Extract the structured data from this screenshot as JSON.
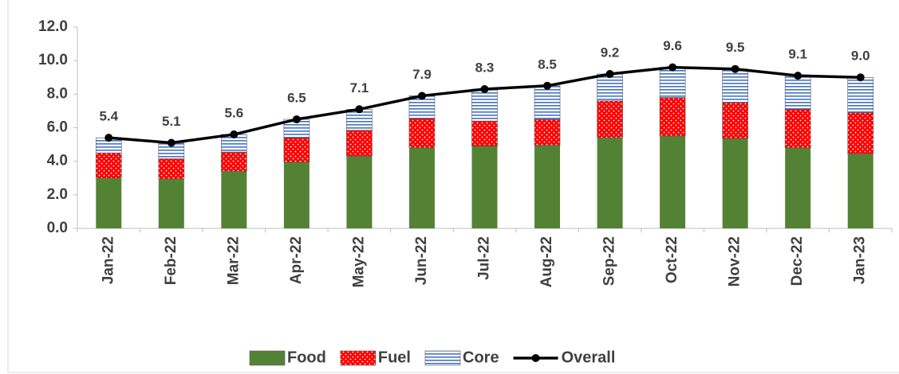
{
  "chart_data": {
    "type": "stacked_bar_line",
    "categories": [
      "Jan-22",
      "Feb-22",
      "Mar-22",
      "Apr-22",
      "May-22",
      "Jun-22",
      "Jul-22",
      "Aug-22",
      "Sep-22",
      "Oct-22",
      "Nov-22",
      "Dec-22",
      "Jan-23"
    ],
    "series": [
      {
        "name": "Food",
        "color": "#548235",
        "values": [
          3.0,
          2.95,
          3.4,
          3.95,
          4.3,
          4.8,
          4.9,
          4.95,
          5.4,
          5.5,
          5.35,
          4.8,
          4.45
        ]
      },
      {
        "name": "Fuel",
        "color": "#ff0000",
        "values": [
          1.5,
          1.2,
          1.15,
          1.45,
          1.55,
          1.75,
          1.5,
          1.55,
          2.2,
          2.3,
          2.15,
          2.3,
          2.45
        ]
      },
      {
        "name": "Core",
        "color": "#4472c4",
        "values": [
          0.9,
          0.95,
          1.05,
          1.1,
          1.25,
          1.35,
          1.9,
          2.0,
          1.6,
          1.8,
          2.0,
          2.0,
          2.1
        ]
      },
      {
        "name": "Overall",
        "color": "#000000",
        "type": "line",
        "values": [
          5.4,
          5.1,
          5.6,
          6.5,
          7.1,
          7.9,
          8.3,
          8.5,
          9.2,
          9.6,
          9.5,
          9.1,
          9.0
        ],
        "value_labels": [
          "5.4",
          "5.1",
          "5.6",
          "6.5",
          "7.1",
          "7.9",
          "8.3",
          "8.5",
          "9.2",
          "9.6",
          "9.5",
          "9.1",
          "9.0"
        ]
      }
    ],
    "ylim": [
      0,
      12
    ],
    "yticks": [
      {
        "value": 0,
        "label": "0.0"
      },
      {
        "value": 2,
        "label": "2.0"
      },
      {
        "value": 4,
        "label": "4.0"
      },
      {
        "value": 6,
        "label": "6.0"
      },
      {
        "value": 8,
        "label": "8.0"
      },
      {
        "value": 10,
        "label": "10.0"
      },
      {
        "value": 12,
        "label": "12.0"
      }
    ],
    "legend": "bottom"
  }
}
